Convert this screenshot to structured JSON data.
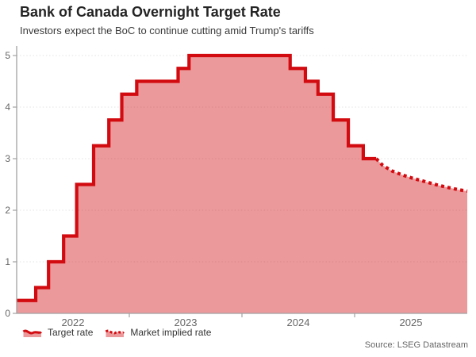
{
  "header": {
    "title": "Bank of Canada Overnight Target Rate",
    "subtitle": "Investors expect the BoC to continue cutting amid Trump's tariffs"
  },
  "source": "Source: LSEG Datastream",
  "legend": [
    {
      "label": "Target rate",
      "style": "solid"
    },
    {
      "label": "Market implied rate",
      "style": "dotted"
    }
  ],
  "colors": {
    "line": "#d20b10",
    "fill": "rgba(210,11,16,0.42)",
    "grid": "#e3e3e3",
    "axis": "#a2a2a2",
    "tick_label": "#666666",
    "title": "#242424",
    "subtitle": "#3a3a3a"
  },
  "chart_data": {
    "type": "area",
    "title": "Bank of Canada Overnight Target Rate",
    "subtitle": "Investors expect the BoC to continue cutting amid Trump's tariffs",
    "xlabel": "",
    "ylabel": "",
    "x_domain": [
      2022.0,
      2026.0
    ],
    "ylim": [
      0,
      5.2
    ],
    "y_ticks": [
      0,
      1,
      2,
      3,
      4,
      5
    ],
    "x_tick_years": [
      2023,
      2024,
      2025
    ],
    "x_labels": [
      {
        "label": "2022",
        "pos": 2022.5
      },
      {
        "label": "2023",
        "pos": 2023.5
      },
      {
        "label": "2024",
        "pos": 2024.5
      },
      {
        "label": "2025",
        "pos": 2025.5
      }
    ],
    "grid": "horizontal-dotted",
    "legend_position": "bottom-left",
    "series": [
      {
        "name": "Target rate",
        "type": "step-area",
        "line_style": "solid",
        "points": [
          [
            "2022-01-01",
            0.25
          ],
          [
            "2022-03-02",
            0.5
          ],
          [
            "2022-04-13",
            1.0
          ],
          [
            "2022-06-01",
            1.5
          ],
          [
            "2022-07-13",
            2.5
          ],
          [
            "2022-09-07",
            3.25
          ],
          [
            "2022-10-26",
            3.75
          ],
          [
            "2022-12-07",
            4.25
          ],
          [
            "2023-01-25",
            4.5
          ],
          [
            "2023-06-07",
            4.75
          ],
          [
            "2023-07-12",
            5.0
          ],
          [
            "2024-06-05",
            4.75
          ],
          [
            "2024-07-24",
            4.5
          ],
          [
            "2024-09-04",
            4.25
          ],
          [
            "2024-10-23",
            3.75
          ],
          [
            "2024-12-11",
            3.25
          ],
          [
            "2025-01-29",
            3.0
          ],
          [
            "2025-03-10",
            3.0
          ]
        ]
      },
      {
        "name": "Market implied rate",
        "type": "line-area",
        "line_style": "dotted",
        "points": [
          [
            "2025-03-10",
            3.0
          ],
          [
            "2025-04-01",
            2.87
          ],
          [
            "2025-05-01",
            2.76
          ],
          [
            "2025-06-01",
            2.69
          ],
          [
            "2025-07-01",
            2.63
          ],
          [
            "2025-08-01",
            2.58
          ],
          [
            "2025-09-01",
            2.53
          ],
          [
            "2025-10-01",
            2.48
          ],
          [
            "2025-11-01",
            2.44
          ],
          [
            "2025-12-01",
            2.4
          ],
          [
            "2026-01-01",
            2.37
          ]
        ]
      }
    ]
  }
}
